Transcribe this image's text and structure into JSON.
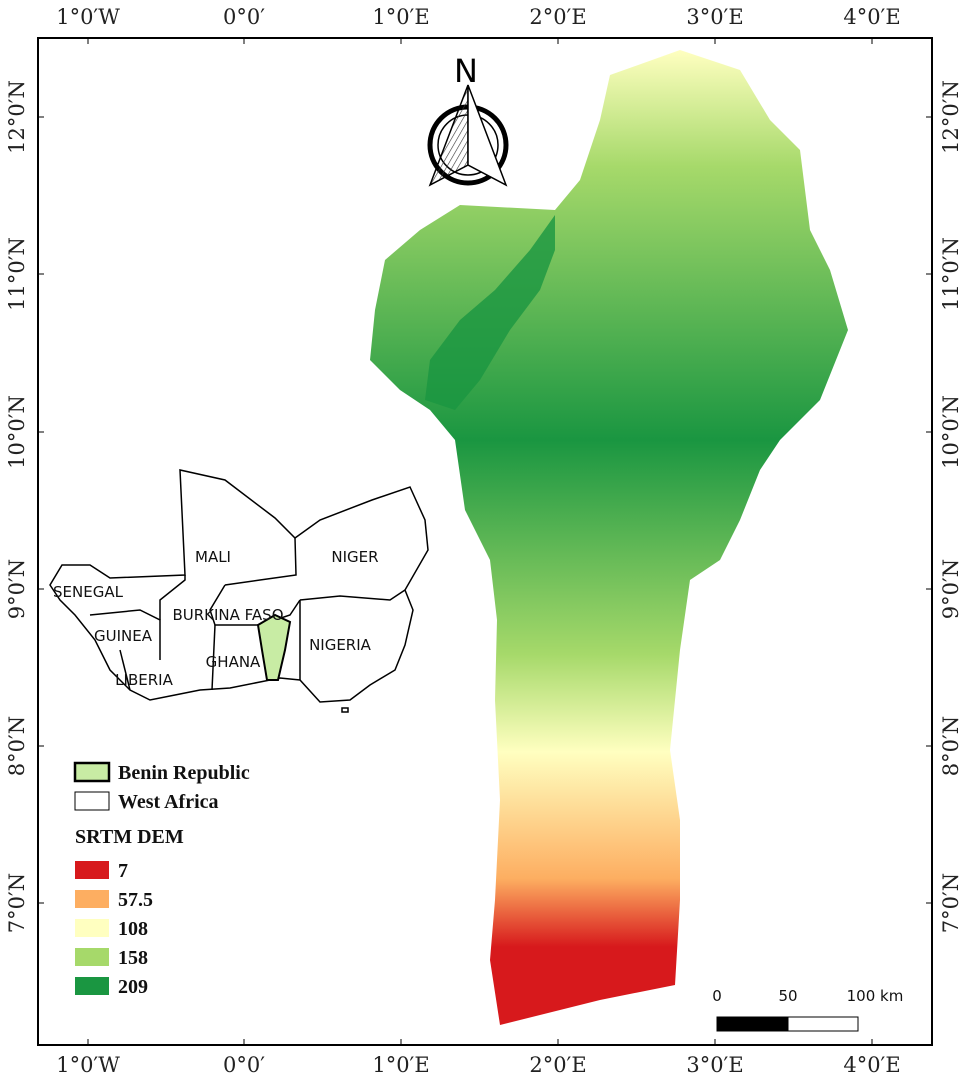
{
  "graticule": {
    "longitude_labels": [
      "1°0′W",
      "0°0′",
      "1°0′E",
      "2°0′E",
      "3°0′E",
      "4°0′E"
    ],
    "latitude_labels": [
      "12°0′N",
      "11°0′N",
      "10°0′N",
      "9°0′N",
      "8°0′N",
      "7°0′N"
    ]
  },
  "north_arrow": {
    "label": "N"
  },
  "inset": {
    "countries": [
      "MALI",
      "NIGER",
      "SENEGAL",
      "BURKINA FASO",
      "GUINEA",
      "NIGERIA",
      "GHANA",
      "LIBERIA"
    ]
  },
  "legend": {
    "boundaries": [
      {
        "label": "Benin Republic",
        "color": "#c8eca4"
      },
      {
        "label": "West Africa",
        "color": "#ffffff"
      }
    ],
    "dem_title": "SRTM DEM",
    "dem_classes": [
      {
        "value": 7,
        "color": "#d7191c"
      },
      {
        "value": 57.5,
        "color": "#fdae61"
      },
      {
        "value": 108,
        "color": "#ffffc0"
      },
      {
        "value": 158,
        "color": "#a6d96a"
      },
      {
        "value": 209,
        "color": "#1a9641"
      }
    ]
  },
  "scale_bar": {
    "labels": [
      "0",
      "50",
      "100 km"
    ]
  }
}
